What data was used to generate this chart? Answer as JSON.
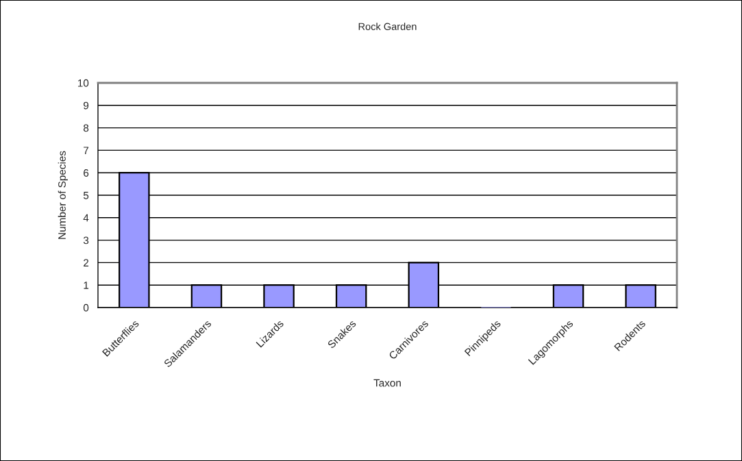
{
  "chart_data": {
    "type": "bar",
    "title": "Rock Garden",
    "xlabel": "Taxon",
    "ylabel": "Number of Species",
    "categories": [
      "Butterflies",
      "Salamanders",
      "Lizards",
      "Snakes",
      "Carnivores",
      "Pinnipeds",
      "Lagomorphs",
      "Rodents"
    ],
    "values": [
      6,
      1,
      1,
      1,
      2,
      0,
      1,
      1
    ],
    "color": "#9999ff",
    "ylim": [
      0,
      10
    ],
    "yticks": [
      0,
      1,
      2,
      3,
      4,
      5,
      6,
      7,
      8,
      9,
      10
    ],
    "grid": "y",
    "legend": false
  }
}
